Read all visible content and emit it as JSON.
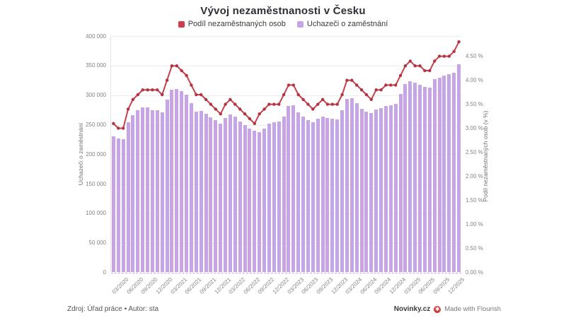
{
  "title": "Vývoj nezaměstnanosti v Česku",
  "legend": [
    {
      "label": "Podíl nezaměstnaných osob",
      "color": "#cf3d4c"
    },
    {
      "label": "Uchazeči o zaměstnání",
      "color": "#c7a4e6"
    }
  ],
  "footer": {
    "source": "Zdroj: Úřad práce • Autor: sta",
    "brand": "Novinky.cz",
    "flourish_icon": "✱",
    "flourish": "Made with Flourish"
  },
  "chart_data": {
    "type": "bar",
    "subtype": "dual-axis bar + line, monthly",
    "x": [
      "01/2020",
      "02/2020",
      "03/2020",
      "04/2020",
      "05/2020",
      "06/2020",
      "07/2020",
      "08/2020",
      "09/2020",
      "10/2020",
      "11/2020",
      "12/2020",
      "01/2021",
      "02/2021",
      "03/2021",
      "04/2021",
      "05/2021",
      "06/2021",
      "07/2021",
      "08/2021",
      "09/2021",
      "10/2021",
      "11/2021",
      "12/2021",
      "01/2022",
      "02/2022",
      "03/2022",
      "04/2022",
      "05/2022",
      "06/2022",
      "07/2022",
      "08/2022",
      "09/2022",
      "10/2022",
      "11/2022",
      "12/2022",
      "01/2023",
      "02/2023",
      "03/2023",
      "04/2023",
      "05/2023",
      "06/2023",
      "07/2023",
      "08/2023",
      "09/2023",
      "10/2023",
      "11/2023",
      "12/2023",
      "01/2024",
      "02/2024",
      "03/2024",
      "04/2024",
      "05/2024",
      "06/2024",
      "07/2024",
      "08/2024",
      "09/2024",
      "10/2024",
      "11/2024",
      "12/2024",
      "01/2025",
      "02/2025",
      "03/2025",
      "04/2025",
      "05/2025",
      "06/2025",
      "07/2025",
      "08/2025",
      "09/2025",
      "10/2025",
      "11/2025",
      "12/2025"
    ],
    "x_tick_labels": [
      "03/2020",
      "06/2020",
      "09/2020",
      "12/2020",
      "03/2021",
      "06/2021",
      "09/2021",
      "12/2021",
      "03/2022",
      "06/2022",
      "09/2022",
      "12/2022",
      "03/2023",
      "06/2023",
      "09/2023",
      "12/2023",
      "03/2024",
      "06/2024",
      "09/2024",
      "12/2024",
      "03/2025",
      "06/2025",
      "09/2025",
      "12/2025"
    ],
    "series": [
      {
        "name": "Uchazeči o zaměstnání",
        "type": "bar",
        "axis": "left",
        "color": "#c7a4e6",
        "values": [
          230200,
          226700,
          225300,
          254100,
          266100,
          274000,
          279700,
          279400,
          275000,
          274400,
          270800,
          291900,
          308900,
          311000,
          306600,
          301400,
          285900,
          272600,
          273000,
          268700,
          262000,
          258000,
          252000,
          261000,
          267000,
          263200,
          255000,
          249000,
          244000,
          240000,
          238000,
          243000,
          251500,
          254300,
          255700,
          264000,
          281700,
          283200,
          271300,
          263600,
          258300,
          254300,
          260300,
          263200,
          261200,
          260000,
          259500,
          274600,
          293200,
          294400,
          286600,
          277400,
          272100,
          269300,
          275300,
          278600,
          281500,
          283000,
          285000,
          302000,
          319000,
          324000,
          321000,
          317000,
          314000,
          313000,
          327000,
          330000,
          333000,
          335000,
          338000,
          352000
        ]
      },
      {
        "name": "Podíl nezaměstnaných osob",
        "type": "line",
        "axis": "right",
        "color": "#c6404d",
        "marker_color": "#b23440",
        "values": [
          3.1,
          3.0,
          3.0,
          3.4,
          3.6,
          3.7,
          3.8,
          3.8,
          3.8,
          3.8,
          3.7,
          4.0,
          4.3,
          4.3,
          4.2,
          4.1,
          3.9,
          3.7,
          3.7,
          3.6,
          3.5,
          3.4,
          3.3,
          3.5,
          3.6,
          3.5,
          3.4,
          3.3,
          3.2,
          3.1,
          3.3,
          3.4,
          3.5,
          3.5,
          3.5,
          3.7,
          3.9,
          3.9,
          3.7,
          3.6,
          3.5,
          3.4,
          3.5,
          3.6,
          3.5,
          3.5,
          3.5,
          3.7,
          4.0,
          4.0,
          3.9,
          3.8,
          3.7,
          3.6,
          3.8,
          3.8,
          3.9,
          3.9,
          3.9,
          4.1,
          4.3,
          4.4,
          4.3,
          4.3,
          4.2,
          4.2,
          4.4,
          4.5,
          4.5,
          4.5,
          4.6,
          4.8
        ]
      }
    ],
    "left_axis": {
      "title": "Uchazeči o zaměstnání",
      "range": [
        0,
        400000
      ],
      "ticks": [
        "0",
        "50 000",
        "100 000",
        "150 000",
        "200 000",
        "250 000",
        "300 000",
        "350 000",
        "400 000"
      ]
    },
    "right_axis": {
      "title": "Podíl nezaměstnaných osob (v %)",
      "range": [
        0,
        4.5
      ],
      "ticks": [
        "0.00 %",
        "0.50 %",
        "1.00 %",
        "1.50 %",
        "2.00 %",
        "2.50 %",
        "3.00 %",
        "3.50 %",
        "4.00 %",
        "4.50 %"
      ]
    },
    "grid": "horizontal, every 50 000; dashed baseline at 0",
    "legend_position": "top center"
  }
}
